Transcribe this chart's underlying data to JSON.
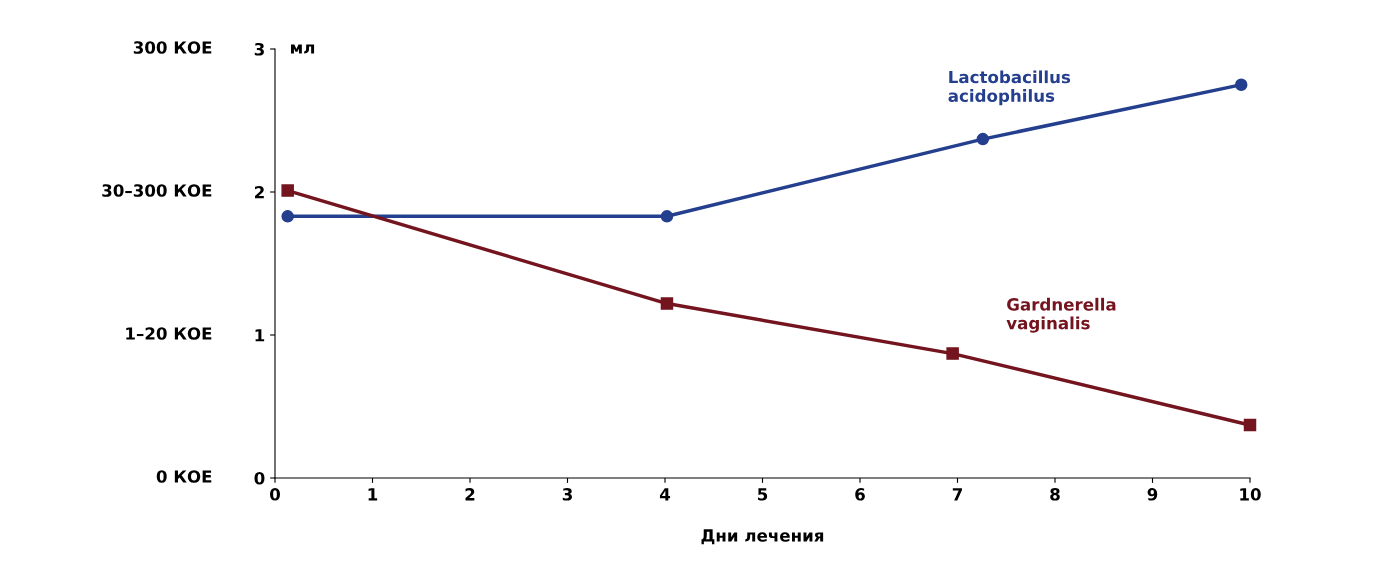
{
  "chart_data": {
    "type": "line",
    "xlabel": "Дни лечения",
    "ylabel": "мл",
    "xlim": [
      0,
      10
    ],
    "xticks": [
      0,
      1,
      2,
      3,
      4,
      5,
      6,
      7,
      8,
      9,
      10
    ],
    "ylim": [
      0,
      3
    ],
    "yticks": [
      0,
      1,
      2,
      3
    ],
    "annotations": [
      "0 КОЕ",
      "1–20 КОЕ",
      "30–300 КОЕ",
      "300 КОЕ"
    ],
    "grid": false,
    "legend": false,
    "series": [
      {
        "name": "Lactobacillus\nacidophilus",
        "color": "#253f8f",
        "marker": "circle",
        "x": [
          0.13,
          4.02,
          7.26,
          9.91
        ],
        "values": [
          1.83,
          1.83,
          2.37,
          2.75
        ]
      },
      {
        "name": "Gardnerella\nvaginalis",
        "color": "#74141e",
        "marker": "square",
        "x": [
          0.13,
          4.02,
          6.95,
          10.0
        ],
        "values": [
          2.01,
          1.22,
          0.87,
          0.37
        ]
      }
    ]
  }
}
